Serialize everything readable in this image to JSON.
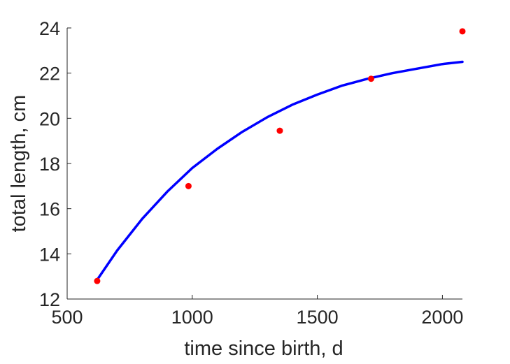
{
  "chart_data": {
    "type": "scatter",
    "title": "",
    "xlabel": "time since birth, d",
    "ylabel": "total length, cm",
    "xlim": [
      500,
      2080
    ],
    "ylim": [
      12,
      24
    ],
    "x_ticks": [
      500,
      1000,
      1500,
      2000
    ],
    "y_ticks": [
      12,
      14,
      16,
      18,
      20,
      22,
      24
    ],
    "x_tick_labels": [
      "500",
      "1000",
      "1500",
      "2000"
    ],
    "y_tick_labels": [
      "12",
      "14",
      "16",
      "18",
      "20",
      "22",
      "24"
    ],
    "grid": false,
    "legend": "none",
    "series": [
      {
        "type": "scatter",
        "color": "#ff0000",
        "x": [
          620,
          985,
          1350,
          1715,
          2080
        ],
        "y": [
          12.8,
          17.0,
          19.45,
          21.75,
          23.85
        ]
      },
      {
        "type": "line",
        "color": "#0000ff",
        "x": [
          620,
          700,
          800,
          900,
          1000,
          1100,
          1200,
          1300,
          1400,
          1500,
          1600,
          1700,
          1800,
          1900,
          2000,
          2080
        ],
        "y": [
          12.85,
          14.15,
          15.55,
          16.75,
          17.8,
          18.65,
          19.4,
          20.05,
          20.6,
          21.05,
          21.45,
          21.75,
          22.0,
          22.2,
          22.4,
          22.5
        ]
      }
    ]
  }
}
